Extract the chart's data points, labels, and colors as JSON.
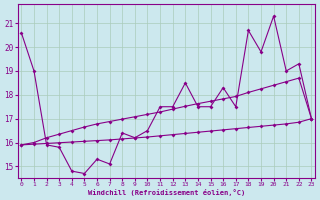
{
  "xlabel": "Windchill (Refroidissement éolien,°C)",
  "bg_color": "#cce8ee",
  "grid_color": "#aaccbb",
  "line_color": "#880088",
  "x_ticks": [
    0,
    1,
    2,
    3,
    4,
    5,
    6,
    7,
    8,
    9,
    10,
    11,
    12,
    13,
    14,
    15,
    16,
    17,
    18,
    19,
    20,
    21,
    22,
    23
  ],
  "y_ticks": [
    15,
    16,
    17,
    18,
    19,
    20,
    21
  ],
  "ylim": [
    14.5,
    21.8
  ],
  "xlim": [
    -0.3,
    23.3
  ],
  "s1": [
    20.6,
    19.0,
    15.9,
    15.8,
    14.8,
    14.7,
    15.3,
    15.1,
    16.4,
    16.2,
    16.5,
    17.5,
    17.5,
    18.5,
    17.5,
    17.5,
    18.3,
    17.5,
    20.7,
    19.8,
    21.3,
    19.0,
    19.3,
    17.0
  ],
  "s2": [
    15.9,
    16.0,
    16.2,
    16.35,
    16.5,
    16.65,
    16.78,
    16.88,
    16.98,
    17.08,
    17.18,
    17.28,
    17.4,
    17.52,
    17.63,
    17.73,
    17.83,
    17.93,
    18.1,
    18.25,
    18.4,
    18.55,
    18.7,
    17.0
  ],
  "s3": [
    15.9,
    15.93,
    15.96,
    15.99,
    16.02,
    16.05,
    16.08,
    16.11,
    16.15,
    16.19,
    16.23,
    16.28,
    16.33,
    16.38,
    16.43,
    16.48,
    16.53,
    16.58,
    16.63,
    16.68,
    16.73,
    16.78,
    16.85,
    17.0
  ]
}
